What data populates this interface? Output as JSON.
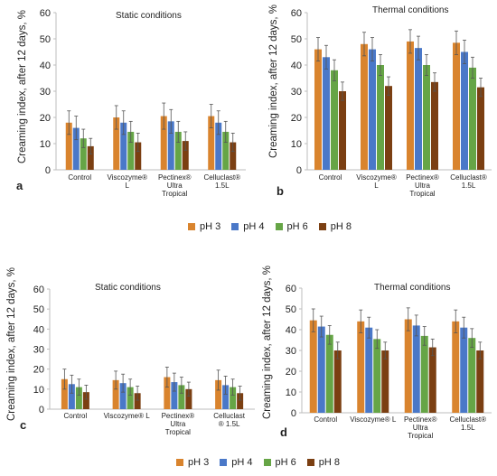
{
  "colors": {
    "pH 3": "#d9842e",
    "pH 4": "#4a78c8",
    "pH 6": "#66a546",
    "pH 8": "#7b3f12",
    "axis": "#bdbdbd"
  },
  "legends": [
    {
      "items": [
        "pH 3",
        "pH 4",
        "pH 6",
        "pH 8"
      ]
    },
    {
      "items": [
        "pH 3",
        "pH 4",
        "pH 6",
        "pH 8"
      ]
    }
  ],
  "chart_data": [
    {
      "panel": "a",
      "type": "bar",
      "title": "Static conditions",
      "ylabel": "Creaming index, after 12 days, %",
      "ylim": [
        0,
        60
      ],
      "yticks": [
        0,
        10,
        20,
        30,
        40,
        50,
        60
      ],
      "categories": [
        "Control",
        "Viscozyme® L",
        "Pectinex® Ultra Tropical",
        "Celluclast® 1.5L"
      ],
      "category_lines": [
        [
          "Control"
        ],
        [
          "Viscozyme®",
          "L"
        ],
        [
          "Pectinex®",
          "Ultra",
          "Tropical"
        ],
        [
          "Celluclast®",
          "1.5L"
        ]
      ],
      "series": [
        {
          "name": "pH 3",
          "values": [
            18,
            20,
            20.5,
            20.5
          ],
          "errors": [
            4.5,
            4.5,
            5,
            4.5
          ]
        },
        {
          "name": "pH 4",
          "values": [
            16,
            18,
            18.5,
            18
          ],
          "errors": [
            4.5,
            4.5,
            4.5,
            4.5
          ]
        },
        {
          "name": "pH 6",
          "values": [
            12,
            14.5,
            14.5,
            14.5
          ],
          "errors": [
            3.5,
            4,
            4,
            4
          ]
        },
        {
          "name": "pH 8",
          "values": [
            9,
            10.5,
            11,
            10.5
          ],
          "errors": [
            3,
            3.5,
            3.5,
            3.5
          ]
        }
      ]
    },
    {
      "panel": "b",
      "type": "bar",
      "title": "Thermal conditions",
      "ylabel": "Creaming index, after 12 days, %",
      "ylim": [
        0,
        60
      ],
      "yticks": [
        0,
        10,
        20,
        30,
        40,
        50,
        60
      ],
      "categories": [
        "Control",
        "Viscozyme® L",
        "Pectinex® Ultra Tropical",
        "Celluclast® 1.5L"
      ],
      "category_lines": [
        [
          "Control"
        ],
        [
          "Viscozyme®",
          "L"
        ],
        [
          "Pectinex®",
          "Ultra",
          "Tropical"
        ],
        [
          "Celluclast®",
          "1.5L"
        ]
      ],
      "series": [
        {
          "name": "pH 3",
          "values": [
            46,
            48,
            49,
            48.5
          ],
          "errors": [
            4.5,
            4.5,
            4.5,
            4.5
          ]
        },
        {
          "name": "pH 4",
          "values": [
            43,
            46,
            46.5,
            45
          ],
          "errors": [
            4.5,
            4.5,
            4.5,
            4.5
          ]
        },
        {
          "name": "pH 6",
          "values": [
            38,
            40,
            40,
            39
          ],
          "errors": [
            4,
            4,
            4,
            4
          ]
        },
        {
          "name": "pH 8",
          "values": [
            30,
            32,
            33.5,
            31.5
          ],
          "errors": [
            3.5,
            3.5,
            3.5,
            3.5
          ]
        }
      ]
    },
    {
      "panel": "c",
      "type": "bar",
      "title": "Static conditions",
      "ylabel": "Creaming index, after 12 days, %",
      "ylim": [
        0,
        60
      ],
      "yticks": [
        0,
        10,
        20,
        30,
        40,
        50,
        60
      ],
      "categories": [
        "Control",
        "Viscozyme® L",
        "Pectinex® Ultra Tropical",
        "Celluclast® 1.5L"
      ],
      "category_lines": [
        [
          "Control"
        ],
        [
          "Viscozyme® L"
        ],
        [
          "Pectinex®",
          "Ultra",
          "Tropical"
        ],
        [
          "Celluclast",
          "® 1.5L"
        ]
      ],
      "series": [
        {
          "name": "pH 3",
          "values": [
            15,
            14.5,
            16,
            14.5
          ],
          "errors": [
            5,
            4.5,
            5,
            5
          ]
        },
        {
          "name": "pH 4",
          "values": [
            12.5,
            13,
            13.5,
            12
          ],
          "errors": [
            4.5,
            4.5,
            4.5,
            4.5
          ]
        },
        {
          "name": "pH 6",
          "values": [
            11,
            11,
            12,
            11
          ],
          "errors": [
            4,
            4,
            4,
            4
          ]
        },
        {
          "name": "pH 8",
          "values": [
            8.5,
            8,
            10,
            8
          ],
          "errors": [
            3.5,
            3.5,
            3.5,
            3.5
          ]
        }
      ]
    },
    {
      "panel": "d",
      "type": "bar",
      "title": "Thermal conditions",
      "ylabel": "Creaming index, after 12 days, %",
      "ylim": [
        0,
        60
      ],
      "yticks": [
        0,
        10,
        20,
        30,
        40,
        50,
        60
      ],
      "categories": [
        "Control",
        "Viscozyme® L",
        "Pectinex® Ultra Tropical",
        "Celluclast® 1.5L"
      ],
      "category_lines": [
        [
          "Control"
        ],
        [
          "Viscozyme® L"
        ],
        [
          "Pectinex®",
          "Ultra",
          "Tropical"
        ],
        [
          "Celluclast®",
          "1.5L"
        ]
      ],
      "series": [
        {
          "name": "pH 3",
          "values": [
            44.5,
            44,
            45,
            44
          ],
          "errors": [
            5.5,
            5.5,
            5.5,
            5.5
          ]
        },
        {
          "name": "pH 4",
          "values": [
            41.5,
            41,
            42,
            41
          ],
          "errors": [
            5,
            5,
            5,
            5
          ]
        },
        {
          "name": "pH 6",
          "values": [
            37.5,
            35.5,
            37,
            36
          ],
          "errors": [
            4.5,
            4.5,
            4.5,
            4.5
          ]
        },
        {
          "name": "pH 8",
          "values": [
            30,
            30,
            31.5,
            30
          ],
          "errors": [
            4,
            4,
            4,
            4
          ]
        }
      ]
    }
  ]
}
